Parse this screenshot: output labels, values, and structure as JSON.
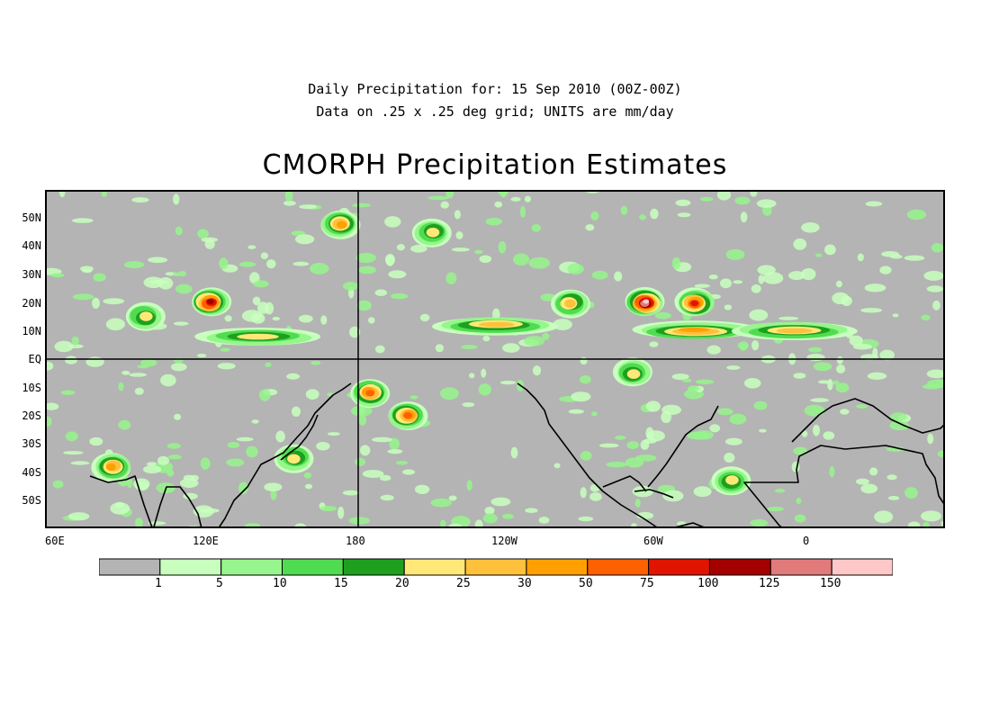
{
  "header": {
    "line1": "Daily Precipitation for: 15 Sep 2010 (00Z-00Z)",
    "line2": "Data on .25 x .25 deg grid; UNITS are mm/day",
    "title": "CMORPH Precipitation Estimates"
  },
  "map": {
    "lon_range": [
      60,
      420
    ],
    "lat_range": [
      -60,
      60
    ],
    "lat_labels": [
      "50N",
      "40N",
      "30N",
      "20N",
      "10N",
      "EQ",
      "10S",
      "20S",
      "30S",
      "40S",
      "50S"
    ],
    "lon_labels": [
      "60E",
      "120E",
      "180",
      "120W",
      "60W",
      "0"
    ],
    "background_color": "#b4b4b4",
    "reference_lines": [
      "EQ",
      "180"
    ]
  },
  "colorbar": {
    "colors": [
      "#b4b4b4",
      "#c8ffbe",
      "#96f58c",
      "#50dc50",
      "#1ea01e",
      "#ffe878",
      "#ffc03c",
      "#ffa000",
      "#ff6000",
      "#e11400",
      "#a50000",
      "#e17a7a",
      "#ffc8c8"
    ],
    "labels": [
      "1",
      "5",
      "10",
      "15",
      "20",
      "25",
      "30",
      "50",
      "75",
      "100",
      "125",
      "150"
    ]
  },
  "rain_features": [
    {
      "lon": 240,
      "lat": 12,
      "type": "itcz_band",
      "level": 6
    },
    {
      "lon": 145,
      "lat": 8,
      "type": "warm_pool",
      "level": 5
    },
    {
      "lon": 100,
      "lat": 15,
      "type": "monsoon",
      "level": 5
    },
    {
      "lon": 320,
      "lat": 10,
      "type": "atlantic_itcz",
      "level": 7
    },
    {
      "lon": 360,
      "lat": 10,
      "type": "african_rain",
      "level": 6
    },
    {
      "lon": 270,
      "lat": 20,
      "type": "caribbean_storm",
      "level": 6
    },
    {
      "lon": 300,
      "lat": 20,
      "type": "hurricane",
      "level": 12
    },
    {
      "lon": 320,
      "lat": 20,
      "type": "hurricane",
      "level": 9
    },
    {
      "lon": 126,
      "lat": 20,
      "type": "typhoon",
      "level": 10
    },
    {
      "lon": 178,
      "lat": 48,
      "type": "pacific_storm",
      "level": 7
    },
    {
      "lon": 215,
      "lat": 45,
      "type": "pacific_storm",
      "level": 5
    },
    {
      "lon": 190,
      "lat": -12,
      "type": "spcz",
      "level": 8
    },
    {
      "lon": 205,
      "lat": -20,
      "type": "spcz",
      "level": 8
    },
    {
      "lon": 87,
      "lat": -38,
      "type": "southern_front",
      "level": 7
    },
    {
      "lon": 160,
      "lat": -35,
      "type": "southern_front",
      "level": 5
    },
    {
      "lon": 335,
      "lat": -43,
      "type": "south_atlantic",
      "level": 5
    },
    {
      "lon": 295,
      "lat": -5,
      "type": "amazon",
      "level": 5
    }
  ]
}
